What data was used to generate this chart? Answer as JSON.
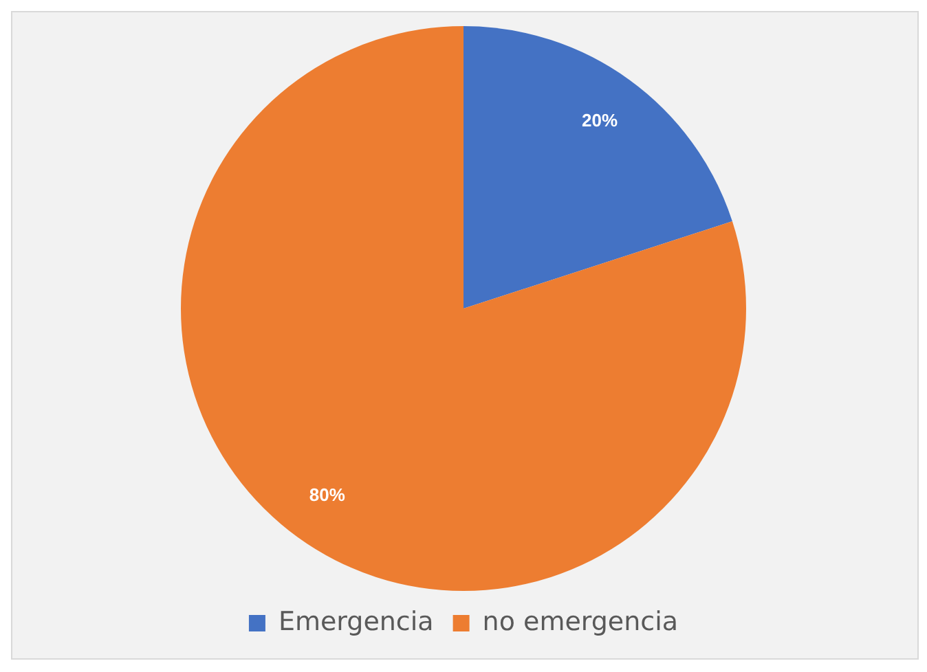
{
  "chart_data": {
    "type": "pie",
    "categories": [
      "Emergencia",
      "no emergencia"
    ],
    "values": [
      20,
      80
    ],
    "colors": [
      "#4472c4",
      "#ed7d31"
    ],
    "value_labels": [
      "20%",
      "80%"
    ],
    "legend": "bottom"
  }
}
